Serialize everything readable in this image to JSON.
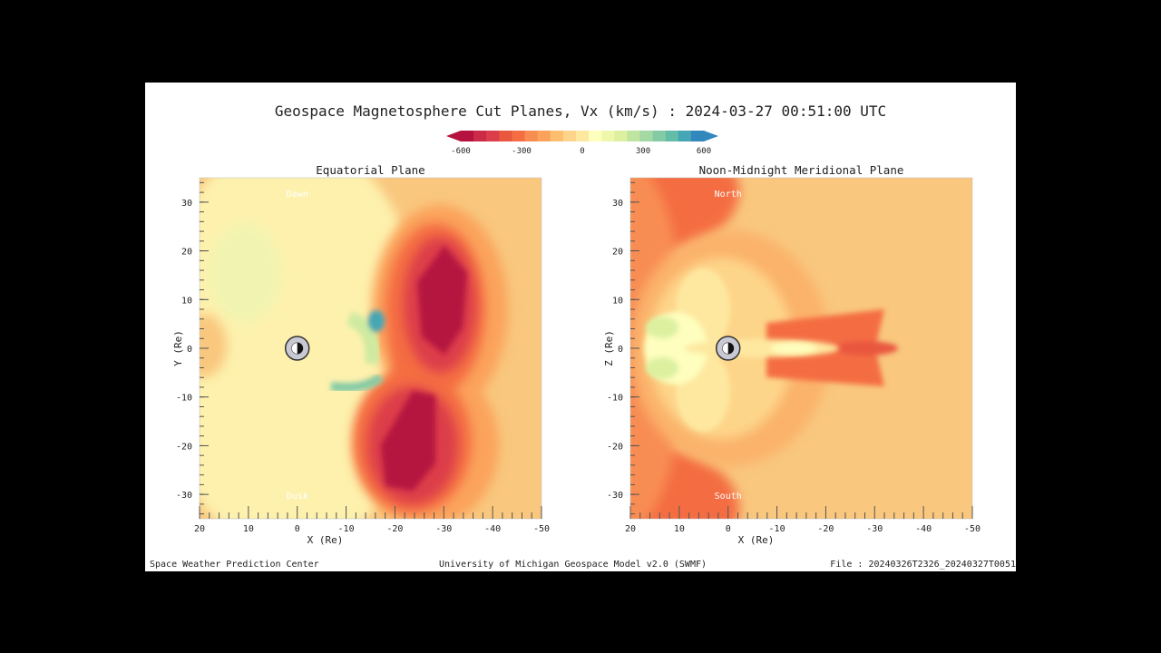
{
  "title": "Geospace Magnetosphere Cut Planes, Vx (km/s) : 2024-03-27 00:51:00 UTC",
  "footer": {
    "left": "Space Weather Prediction Center",
    "center": "University of Michigan Geospace Model v2.0 (SWMF)",
    "right": "File : 20240326T2326_20240327T0051"
  },
  "colorbar": {
    "variable": "Vx (km/s)",
    "range": [
      -600,
      600
    ],
    "ticks": [
      "-600",
      "-300",
      "0",
      "300",
      "600"
    ],
    "colors": [
      "#b5123f",
      "#cb2b46",
      "#dc3d4a",
      "#e9573f",
      "#f46d43",
      "#f88d52",
      "#fba35c",
      "#fdbf6f",
      "#fdd58a",
      "#fee8a0",
      "#fefebe",
      "#eff8aa",
      "#dcf0a0",
      "#bfe5a0",
      "#a3d9a3",
      "#84cba5",
      "#63bda8",
      "#45a6b6",
      "#3288bd"
    ]
  },
  "chart_data": [
    {
      "type": "heatmap",
      "title": "Equatorial Plane",
      "xlabel": "X (Re)",
      "ylabel": "Y (Re)",
      "xlim": [
        20,
        -50
      ],
      "ylim": [
        -35,
        35
      ],
      "xticks": [
        "20",
        "10",
        "0",
        "-10",
        "-20",
        "-30",
        "-40",
        "-50"
      ],
      "yticks": [
        "30",
        "20",
        "10",
        "0",
        "-10",
        "-20",
        "-30"
      ],
      "annotations": [
        "Dawn",
        "Dusk"
      ],
      "earth_marker": [
        0,
        0
      ]
    },
    {
      "type": "heatmap",
      "title": "Noon-Midnight Meridional Plane",
      "xlabel": "X (Re)",
      "ylabel": "Z (Re)",
      "xlim": [
        20,
        -50
      ],
      "ylim": [
        -35,
        35
      ],
      "xticks": [
        "20",
        "10",
        "0",
        "-10",
        "-20",
        "-30",
        "-40",
        "-50"
      ],
      "yticks": [
        "30",
        "20",
        "10",
        "0",
        "-10",
        "-20",
        "-30"
      ],
      "annotations": [
        "North",
        "South"
      ],
      "earth_marker": [
        0,
        0
      ]
    }
  ]
}
